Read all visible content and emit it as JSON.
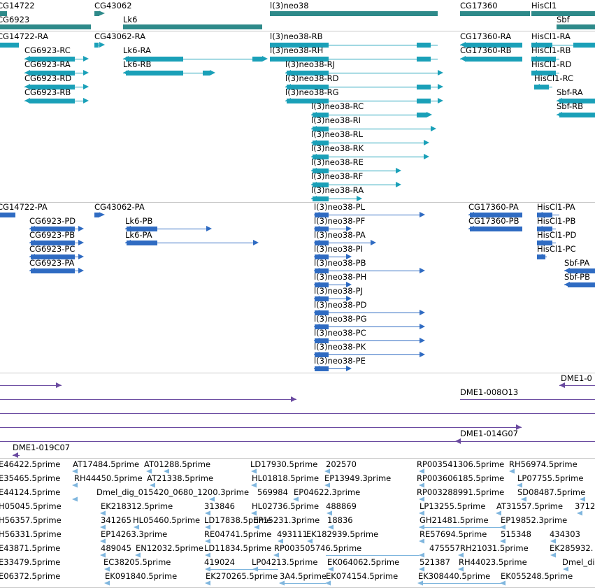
{
  "colors": {
    "gene": "#2e8a8a",
    "transcript_a": "#1aa0b8",
    "transcript_b": "#2f6bc2",
    "cdna": "#6a4aa0",
    "est": "#7fb6de",
    "separator": "#c9c9c9"
  },
  "tracks": [
    {
      "id": "genes",
      "items": [
        {
          "label": "CG14722",
          "color": "gene"
        },
        {
          "label": "CG6923",
          "color": "gene"
        },
        {
          "label": "CG43062",
          "color": "gene"
        },
        {
          "label": "Lk6",
          "color": "gene"
        },
        {
          "label": "l(3)neo38",
          "color": "gene"
        },
        {
          "label": "CG17360",
          "color": "gene"
        },
        {
          "label": "HisCl1",
          "color": "gene"
        },
        {
          "label": "Sbf",
          "color": "gene"
        }
      ]
    },
    {
      "id": "transcripts-a",
      "items": [
        {
          "label": "CG14722-RA"
        },
        {
          "label": "CG43062-RA"
        },
        {
          "label": "l(3)neo38-RB"
        },
        {
          "label": "CG17360-RA"
        },
        {
          "label": "HisCl1-RA"
        },
        {
          "label": "CG6923-RC"
        },
        {
          "label": "Lk6-RA"
        },
        {
          "label": "l(3)neo38-RH"
        },
        {
          "label": "CG17360-RB"
        },
        {
          "label": "HisCl1-RB"
        },
        {
          "label": "CG6923-RA"
        },
        {
          "label": "Lk6-RB"
        },
        {
          "label": "l(3)neo38-RJ"
        },
        {
          "label": "HisCl1-RD"
        },
        {
          "label": "CG6923-RD"
        },
        {
          "label": "l(3)neo38-RD"
        },
        {
          "label": "HisCl1-RC"
        },
        {
          "label": "CG6923-RB"
        },
        {
          "label": "l(3)neo38-RG"
        },
        {
          "label": "Sbf-RA"
        },
        {
          "label": "l(3)neo38-RC"
        },
        {
          "label": "Sbf-RB"
        },
        {
          "label": "l(3)neo38-RI"
        },
        {
          "label": "l(3)neo38-RL"
        },
        {
          "label": "l(3)neo38-RK"
        },
        {
          "label": "l(3)neo38-RE"
        },
        {
          "label": "l(3)neo38-RF"
        },
        {
          "label": "l(3)neo38-RA"
        }
      ]
    },
    {
      "id": "transcripts-b",
      "items": [
        {
          "label": "CG14722-PA"
        },
        {
          "label": "CG43062-PA"
        },
        {
          "label": "l(3)neo38-PL"
        },
        {
          "label": "CG17360-PA"
        },
        {
          "label": "HisCl1-PA"
        },
        {
          "label": "CG6923-PD"
        },
        {
          "label": "Lk6-PB"
        },
        {
          "label": "l(3)neo38-PF"
        },
        {
          "label": "CG17360-PB"
        },
        {
          "label": "HisCl1-PB"
        },
        {
          "label": "CG6923-PB"
        },
        {
          "label": "Lk6-PA"
        },
        {
          "label": "l(3)neo38-PA"
        },
        {
          "label": "HisCl1-PD"
        },
        {
          "label": "CG6923-PC"
        },
        {
          "label": "l(3)neo38-PI"
        },
        {
          "label": "HisCl1-PC"
        },
        {
          "label": "CG6923-PA"
        },
        {
          "label": "l(3)neo38-PB"
        },
        {
          "label": "Sbf-PA"
        },
        {
          "label": "l(3)neo38-PH"
        },
        {
          "label": "Sbf-PB"
        },
        {
          "label": "l(3)neo38-PJ"
        },
        {
          "label": "l(3)neo38-PD"
        },
        {
          "label": "l(3)neo38-PG"
        },
        {
          "label": "l(3)neo38-PC"
        },
        {
          "label": "l(3)neo38-PK"
        },
        {
          "label": "l(3)neo38-PE"
        }
      ]
    },
    {
      "id": "cdna",
      "items": [
        {
          "label": "DME1-0"
        },
        {
          "label": "DME1-008O13"
        },
        {
          "label": "DME1-014G07"
        },
        {
          "label": "DME1-019C07"
        }
      ]
    },
    {
      "id": "est",
      "items": [
        {
          "label": "E46422.5prime"
        },
        {
          "label": "AT17484.5prime"
        },
        {
          "label": "AT01288.5prime"
        },
        {
          "label": "LD17930.5prime"
        },
        {
          "label": "202570"
        },
        {
          "label": "RP003541306.5prime"
        },
        {
          "label": "RH56974.5prime"
        },
        {
          "label": "E35465.5prime"
        },
        {
          "label": "RH44450.5prime"
        },
        {
          "label": "AT21338.5prime"
        },
        {
          "label": "HL01818.5prime"
        },
        {
          "label": "EP13949.3prime"
        },
        {
          "label": "RP003606185.5prime"
        },
        {
          "label": "LP07755.5prime"
        },
        {
          "label": "E44124.5prime"
        },
        {
          "label": "Dmel_dig_015420_0680_1200.3prime"
        },
        {
          "label": "569984"
        },
        {
          "label": "EP04622.3prime"
        },
        {
          "label": "RP003288991.5prime"
        },
        {
          "label": "SD08487.5prime"
        },
        {
          "label": "H05045.5prime"
        },
        {
          "label": "EK218312.5prime"
        },
        {
          "label": "313846"
        },
        {
          "label": "HL02736.5prime"
        },
        {
          "label": "488869"
        },
        {
          "label": "LP13255.5prime"
        },
        {
          "label": "AT31557.5prime"
        },
        {
          "label": "3712"
        },
        {
          "label": "H56357.5prime"
        },
        {
          "label": "341265"
        },
        {
          "label": "HL05460.5prime"
        },
        {
          "label": "LD17838.5prime"
        },
        {
          "label": "EP15231.3prime"
        },
        {
          "label": "18836"
        },
        {
          "label": "GH21481.5prime"
        },
        {
          "label": "EP19852.3prime"
        },
        {
          "label": "H56331.5prime"
        },
        {
          "label": "EP14263.3prime"
        },
        {
          "label": "RE04741.5prime"
        },
        {
          "label": "493111"
        },
        {
          "label": "EK182939.5prime"
        },
        {
          "label": "RE57694.5prime"
        },
        {
          "label": "515348"
        },
        {
          "label": "434303"
        },
        {
          "label": "E43871.5prime"
        },
        {
          "label": "489045"
        },
        {
          "label": "EN12032.5prime"
        },
        {
          "label": "LD11834.5prime"
        },
        {
          "label": "RP003505746.5prime"
        },
        {
          "label": "475557"
        },
        {
          "label": "RH21031.5prime"
        },
        {
          "label": "EK285932."
        },
        {
          "label": "E33479.5prime"
        },
        {
          "label": "EC38205.5prime"
        },
        {
          "label": "419024"
        },
        {
          "label": "LP04213.5prime"
        },
        {
          "label": "EK064062.5prime"
        },
        {
          "label": "521387"
        },
        {
          "label": "RH44023.5prime"
        },
        {
          "label": "Dmel_di"
        },
        {
          "label": "E06372.5prime"
        },
        {
          "label": "EK091840.5prime"
        },
        {
          "label": "EK270265.5prime"
        },
        {
          "label": "3A4.5prime"
        },
        {
          "label": "EK074154.5prime"
        },
        {
          "label": "EK308440.5prime"
        },
        {
          "label": "EK055248.5prime"
        }
      ]
    }
  ]
}
